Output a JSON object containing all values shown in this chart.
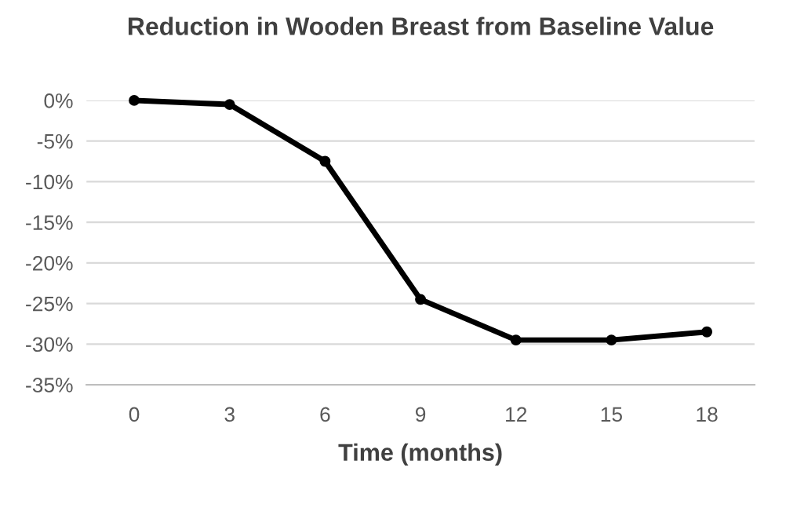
{
  "chart_data": {
    "type": "line",
    "title": "Reduction in Wooden Breast from Baseline Value",
    "xlabel": "Time (months)",
    "categories": [
      "0",
      "3",
      "6",
      "9",
      "12",
      "15",
      "18"
    ],
    "series": [
      {
        "color": "#000000",
        "values": [
          0,
          -0.5,
          -7.5,
          -24.5,
          -29.5,
          -29.5,
          -28.5
        ]
      }
    ],
    "ylim": [
      -35,
      0
    ],
    "yticks": [
      {
        "value": -35,
        "label": "-35%"
      },
      {
        "value": -30,
        "label": "-30%"
      },
      {
        "value": -25,
        "label": "-25%"
      },
      {
        "value": -20,
        "label": "-20%"
      },
      {
        "value": -15,
        "label": "-15%"
      },
      {
        "value": -10,
        "label": "-10%"
      },
      {
        "value": -5,
        "label": "-5%"
      },
      {
        "value": 0,
        "label": "0%"
      }
    ],
    "grid": "y",
    "marker": "circle",
    "line_style": "solid"
  }
}
